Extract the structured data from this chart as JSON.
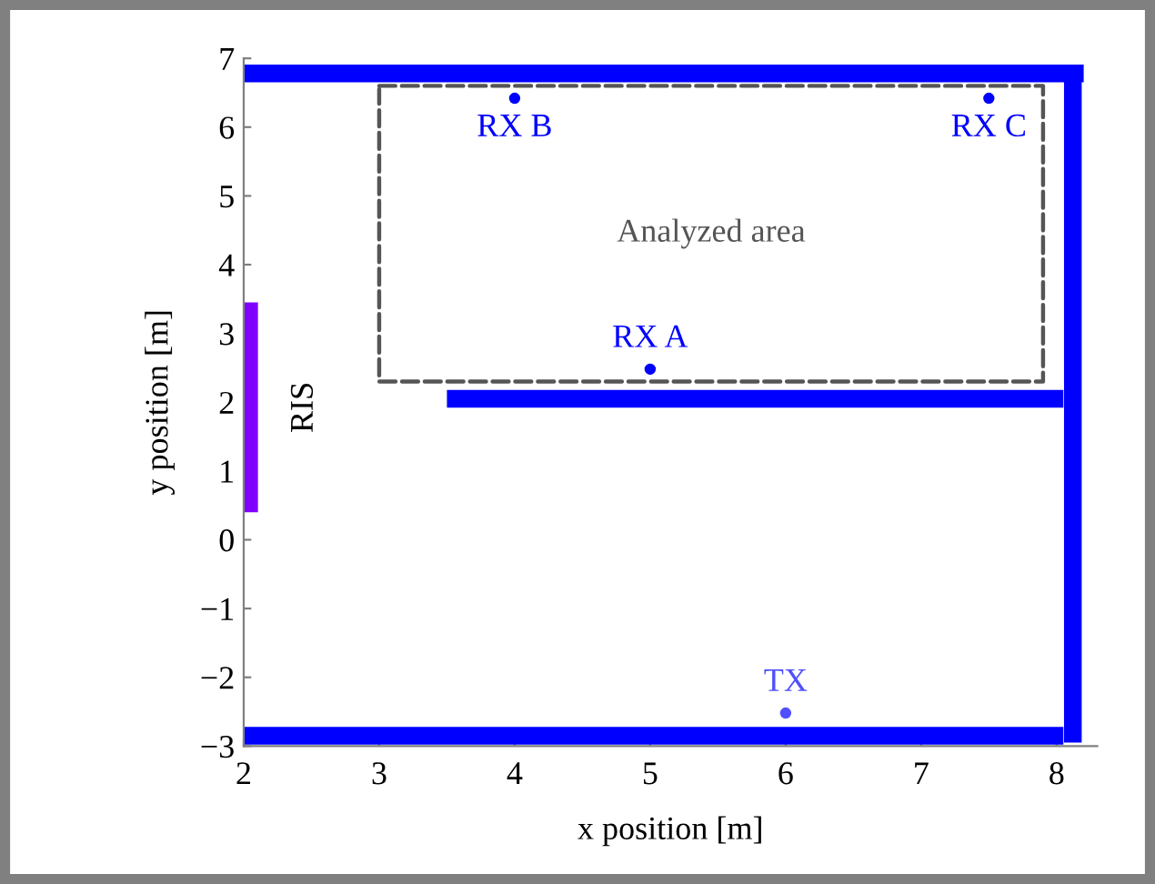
{
  "chart_data": {
    "type": "line",
    "xlabel": "x position [m]",
    "ylabel": "y position [m]",
    "xlim": [
      2,
      8.3
    ],
    "ylim": [
      -3,
      7
    ],
    "xticks": [
      2,
      3,
      4,
      5,
      6,
      7,
      8
    ],
    "yticks": [
      -3,
      -2,
      -1,
      0,
      1,
      2,
      3,
      4,
      5,
      6,
      7
    ],
    "grid": false,
    "legend": false,
    "series": [
      {
        "color": "#0000ff",
        "line_style": "solid",
        "x": [
          2,
          8.2
        ],
        "values": [
          6.78,
          6.78
        ]
      },
      {
        "color": "#0000ff",
        "line_style": "solid",
        "x": [
          8.12,
          8.12
        ],
        "values": [
          -2.95,
          6.88
        ]
      },
      {
        "color": "#0000ff",
        "line_style": "solid",
        "x": [
          2,
          8.05
        ],
        "values": [
          -2.85,
          -2.85
        ]
      },
      {
        "color": "#0000ff",
        "line_style": "solid",
        "x": [
          3.5,
          8.05
        ],
        "values": [
          2.05,
          2.05
        ]
      },
      {
        "name": "RIS",
        "color": "#8000ff",
        "line_style": "solid",
        "x": [
          2.04,
          2.04
        ],
        "values": [
          0.4,
          3.45
        ]
      },
      {
        "name": "Analyzed area",
        "color": "#555555",
        "line_style": "dashed",
        "x": [
          3,
          7.9,
          7.9,
          3,
          3
        ],
        "values": [
          6.6,
          6.6,
          2.3,
          2.3,
          6.55
        ]
      },
      {
        "type": "scatter",
        "name": "RX A",
        "color": "#0000ff",
        "marker": "circle",
        "x": [
          5
        ],
        "values": [
          2.48
        ]
      },
      {
        "type": "scatter",
        "name": "RX B",
        "color": "#0000ff",
        "marker": "circle",
        "x": [
          4
        ],
        "values": [
          6.42
        ]
      },
      {
        "type": "scatter",
        "name": "RX C",
        "color": "#0000ff",
        "marker": "circle",
        "x": [
          7.5
        ],
        "values": [
          6.42
        ]
      },
      {
        "type": "scatter",
        "name": "TX",
        "color": "#5050ff",
        "marker": "circle",
        "x": [
          6
        ],
        "values": [
          -2.52
        ]
      }
    ]
  }
}
